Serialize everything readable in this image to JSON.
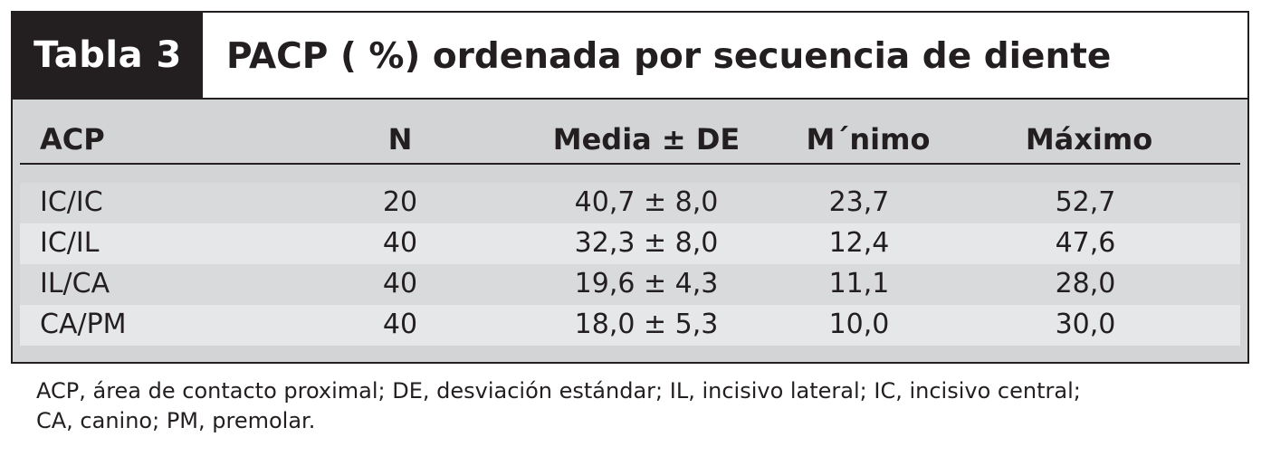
{
  "table": {
    "label": "Tabla 3",
    "title": "PACP ( %) ordenada por secuencia de diente",
    "columns": [
      "ACP",
      "N",
      "Media ± DE",
      "M´nimo",
      "Máximo"
    ],
    "rows": [
      {
        "acp": "IC/IC",
        "n": "20",
        "media": "40,7 ± 8,0",
        "min": "23,7",
        "max": "52,7"
      },
      {
        "acp": "IC/IL",
        "n": "40",
        "media": "32,3 ± 8,0",
        "min": "12,4",
        "max": "47,6"
      },
      {
        "acp": "IL/CA",
        "n": "40",
        "media": "19,6 ± 4,3",
        "min": "11,1",
        "max": "28,0"
      },
      {
        "acp": "CA/PM",
        "n": "40",
        "media": "18,0 ± 5,3",
        "min": "10,0",
        "max": "30,0"
      }
    ],
    "footnote": {
      "line1": "ACP, área de contacto proximal; DE, desviación estándar; IL, incisivo lateral; IC, incisivo central;",
      "line2": "CA, canino; PM, premolar."
    }
  },
  "colors": {
    "ink": "#231f20",
    "row_light": "#e6e7e8",
    "row_dark": "#d3d4d6"
  }
}
